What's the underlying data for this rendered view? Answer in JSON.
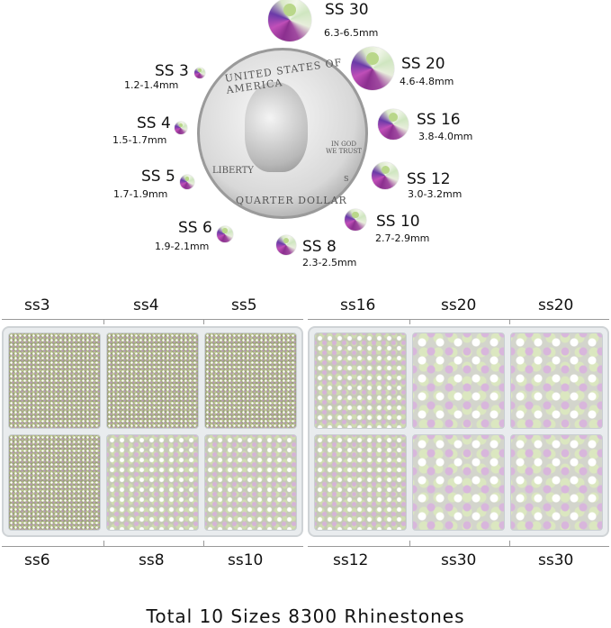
{
  "sizes": [
    {
      "label": "SS 30",
      "mm": "6.3-6.5mm"
    },
    {
      "label": "SS 20",
      "mm": "4.6-4.8mm"
    },
    {
      "label": "SS 16",
      "mm": "3.8-4.0mm"
    },
    {
      "label": "SS 12",
      "mm": "3.0-3.2mm"
    },
    {
      "label": "SS 10",
      "mm": "2.7-2.9mm"
    },
    {
      "label": "SS 8",
      "mm": "2.3-2.5mm"
    },
    {
      "label": "SS 6",
      "mm": "1.9-2.1mm"
    },
    {
      "label": "SS 5",
      "mm": "1.7-1.9mm"
    },
    {
      "label": "SS 4",
      "mm": "1.5-1.7mm"
    },
    {
      "label": "SS 3",
      "mm": "1.2-1.4mm"
    }
  ],
  "coin": {
    "top": "UNITED STATES OF AMERICA",
    "motto": "IN GOD WE TRUST",
    "liberty": "LIBERTY",
    "mint": "S",
    "bottom": "QUARTER DOLLAR"
  },
  "box_left": {
    "top_labels": [
      "ss3",
      "ss4",
      "ss5"
    ],
    "bottom_labels": [
      "ss6",
      "ss8",
      "ss10"
    ]
  },
  "box_right": {
    "top_labels": [
      "ss16",
      "ss20",
      "ss20"
    ],
    "bottom_labels": [
      "ss12",
      "ss30",
      "ss30"
    ]
  },
  "total": "Total 10 Sizes 8300 Rhinestones"
}
